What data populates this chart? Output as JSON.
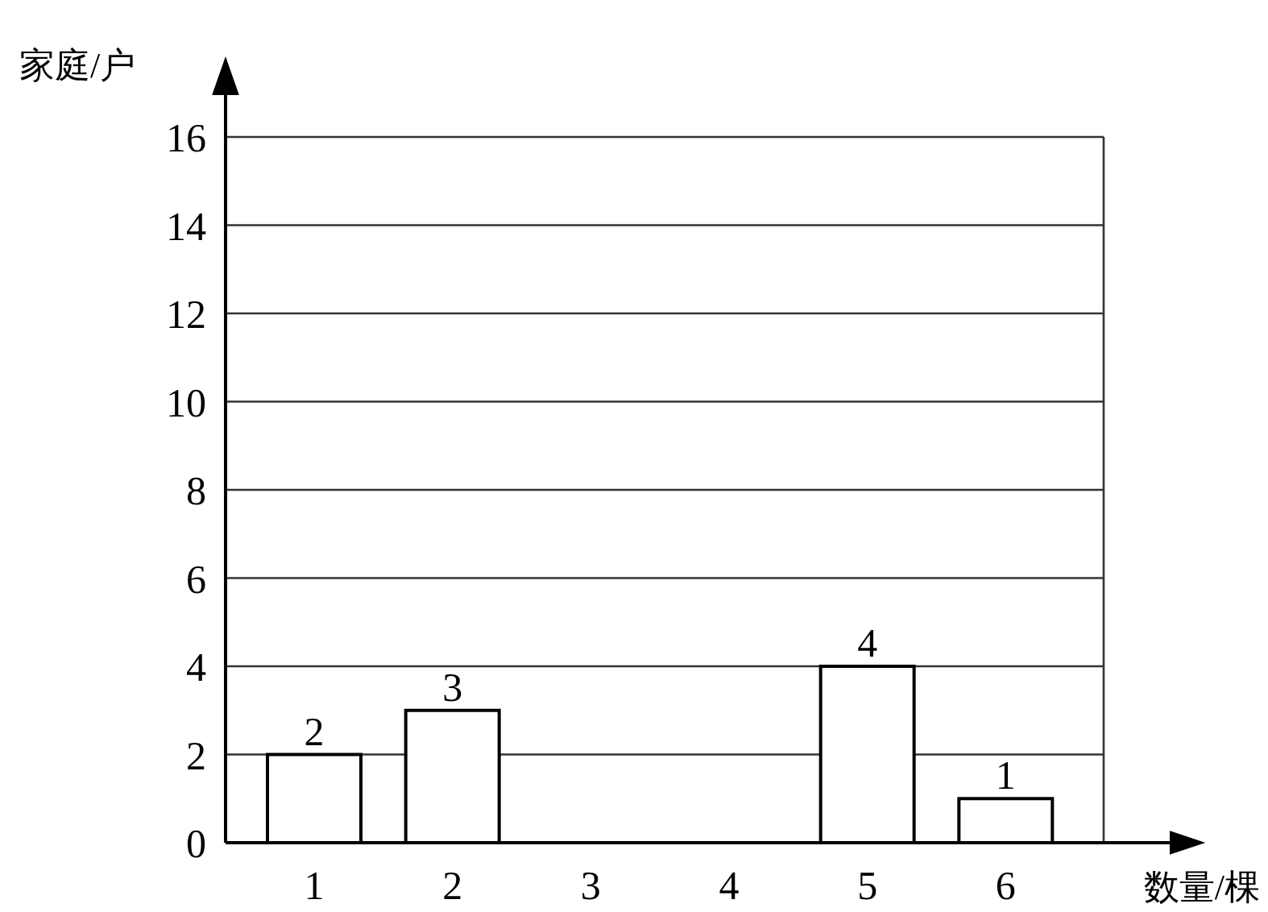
{
  "chart_data": {
    "type": "bar",
    "xlabel": "数量/棵",
    "ylabel": "家庭/户",
    "categories": [
      "1",
      "2",
      "3",
      "4",
      "5",
      "6"
    ],
    "values": [
      2,
      3,
      null,
      null,
      4,
      1
    ],
    "color": "#ffffff",
    "data_labels": true,
    "ylim": [
      0,
      16
    ],
    "yticks": [
      0,
      2,
      4,
      6,
      8,
      10,
      12,
      14,
      16
    ],
    "grid": "y"
  }
}
